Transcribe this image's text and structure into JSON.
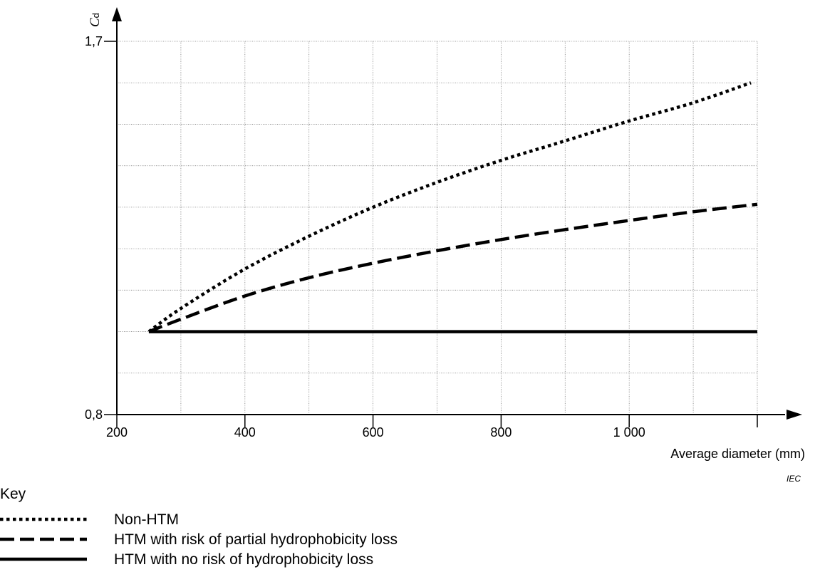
{
  "chart_data": {
    "type": "line",
    "xlabel": "Average diameter  (mm)",
    "ylabel_main": "C",
    "ylabel_sub": "d",
    "xlim": [
      200,
      1200
    ],
    "ylim": [
      0.8,
      1.7
    ],
    "x_ticks": [
      {
        "value": 200,
        "label": "200"
      },
      {
        "value": 400,
        "label": "400"
      },
      {
        "value": 600,
        "label": "600"
      },
      {
        "value": 800,
        "label": "800"
      },
      {
        "value": 1000,
        "label": "1 000"
      },
      {
        "value": 1200,
        "label": ""
      }
    ],
    "y_ticks": [
      {
        "value": 0.8,
        "label": "0,8"
      },
      {
        "value": 1.7,
        "label": "1,7"
      }
    ],
    "x_grid": [
      300,
      400,
      500,
      600,
      700,
      800,
      900,
      1000,
      1100,
      1200
    ],
    "y_grid": [
      0.9,
      1.0,
      1.1,
      1.2,
      1.3,
      1.4,
      1.5,
      1.6,
      1.7
    ],
    "grid": true,
    "series": [
      {
        "name": "Non-HTM",
        "style": "dotted",
        "x": [
          250,
          300,
          400,
          500,
          600,
          700,
          800,
          900,
          1000,
          1100,
          1190
        ],
        "y": [
          1.0,
          1.056,
          1.151,
          1.23,
          1.3,
          1.36,
          1.413,
          1.46,
          1.508,
          1.552,
          1.6
        ]
      },
      {
        "name": "HTM with risk of partial hydrophobicity loss",
        "style": "dashed",
        "x": [
          250,
          300,
          400,
          500,
          600,
          700,
          800,
          900,
          1000,
          1100,
          1200
        ],
        "y": [
          1.0,
          1.03,
          1.086,
          1.13,
          1.165,
          1.195,
          1.222,
          1.246,
          1.268,
          1.289,
          1.307
        ]
      },
      {
        "name": "HTM with no risk of hydrophobicity loss",
        "style": "solid",
        "x": [
          250,
          1200
        ],
        "y": [
          1.0,
          1.0
        ]
      }
    ],
    "legend": {
      "title": "Key",
      "placement": "bottom-left",
      "entries": [
        {
          "label": "Non-HTM",
          "style": "dotted"
        },
        {
          "label": "HTM with risk of partial hydrophobicity loss",
          "style": "dashed"
        },
        {
          "label": "HTM with no risk of hydrophobicity loss",
          "style": "solid"
        }
      ]
    },
    "watermark": "IEC",
    "colors": {
      "line": "#000000",
      "grid": "#808080"
    }
  }
}
